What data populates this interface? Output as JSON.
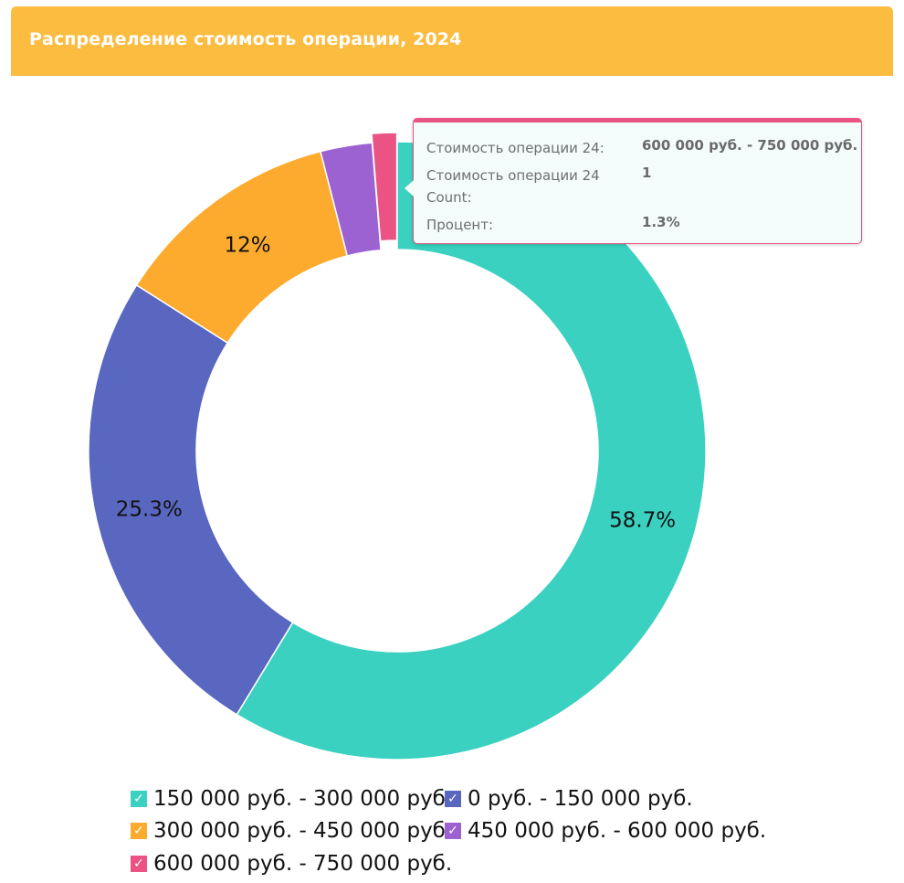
{
  "title": "Распределение стоимость операции, 2024",
  "chart_data": {
    "type": "pie",
    "donut": true,
    "categories": [
      "150 000 руб. - 300 000 руб.",
      "0 руб. - 150 000 руб.",
      "300 000 руб. - 450 000 руб.",
      "450 000 руб. - 600 000 руб.",
      "600 000 руб. - 750 000 руб."
    ],
    "values": [
      58.7,
      25.3,
      12,
      2.7,
      1.3
    ],
    "data_labels": [
      "58.7%",
      "25.3%",
      "12%",
      "",
      ""
    ],
    "colors": [
      "#3ad1c0",
      "#5967c0",
      "#fcab2e",
      "#9d62d2",
      "#ea5383"
    ],
    "highlighted_index": 4,
    "legend_position": "bottom"
  },
  "tooltip": {
    "rows": [
      {
        "label": "Стоимость операции 24:",
        "value": "600 000 руб. - 750 000 руб."
      },
      {
        "label": "Стоимость операции 24 Count:",
        "value": "1"
      },
      {
        "label": "Процент:",
        "value": "1.3%"
      }
    ]
  },
  "legend": {
    "check_glyph": "✓"
  }
}
